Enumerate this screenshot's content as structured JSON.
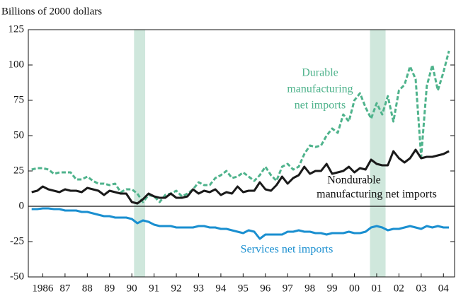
{
  "chart_data": {
    "type": "line",
    "y_axis_label": "Billions of 2000 dollars",
    "x": [
      1986,
      1986.25,
      1986.5,
      1986.75,
      1987,
      1987.25,
      1987.5,
      1987.75,
      1988,
      1988.25,
      1988.5,
      1988.75,
      1989,
      1989.25,
      1989.5,
      1989.75,
      1990,
      1990.25,
      1990.5,
      1990.75,
      1991,
      1991.25,
      1991.5,
      1991.75,
      1992,
      1992.25,
      1992.5,
      1992.75,
      1993,
      1993.25,
      1993.5,
      1993.75,
      1994,
      1994.25,
      1994.5,
      1994.75,
      1995,
      1995.25,
      1995.5,
      1995.75,
      1996,
      1996.25,
      1996.5,
      1996.75,
      1997,
      1997.25,
      1997.5,
      1997.75,
      1998,
      1998.25,
      1998.5,
      1998.75,
      1999,
      1999.25,
      1999.5,
      1999.75,
      2000,
      2000.25,
      2000.5,
      2000.75,
      2001,
      2001.25,
      2001.5,
      2001.75,
      2002,
      2002.25,
      2002.5,
      2002.75,
      2003,
      2003.25,
      2003.5,
      2003.75,
      2004,
      2004.25,
      2004.5,
      2004.75
    ],
    "series": [
      {
        "label": [
          "Durable",
          "manufacturing",
          "net imports"
        ],
        "color": "#4fb38c",
        "dashed": true,
        "values": [
          26,
          27,
          27,
          26,
          23,
          24,
          24,
          24,
          19,
          19,
          21,
          18,
          16,
          16,
          15,
          16,
          10,
          12,
          12,
          9,
          3,
          8,
          7,
          3,
          8,
          9,
          11,
          7,
          9,
          12,
          17,
          15,
          15,
          20,
          22,
          25,
          20,
          21,
          24,
          21,
          18,
          22,
          28,
          22,
          18,
          28,
          30,
          26,
          28,
          37,
          43,
          42,
          43,
          50,
          55,
          52,
          65,
          60,
          75,
          80,
          70,
          62,
          73,
          65,
          78,
          60,
          82,
          86,
          99,
          90,
          35,
          85,
          100,
          82,
          95,
          110
        ]
      },
      {
        "label": [
          "Nondurable",
          "manufacturing net imports"
        ],
        "color": "#1a1a1a",
        "dashed": false,
        "values": [
          10,
          11,
          14,
          12,
          11,
          10,
          12,
          11,
          11,
          10,
          13,
          12,
          11,
          8,
          11,
          10,
          9,
          9,
          3,
          2,
          5,
          9,
          7,
          6,
          6,
          9,
          6,
          6,
          7,
          12,
          9,
          11,
          10,
          12,
          8,
          10,
          9,
          14,
          10,
          11,
          11,
          17,
          12,
          11,
          15,
          21,
          16,
          20,
          22,
          28,
          23,
          25,
          25,
          30,
          23,
          24,
          25,
          28,
          24,
          27,
          26,
          33,
          30,
          29,
          29,
          39,
          34,
          31,
          34,
          40,
          34,
          35,
          35,
          36,
          37,
          39
        ]
      },
      {
        "label": [
          "Services net imports"
        ],
        "color": "#1a8fd0",
        "dashed": false,
        "values": [
          -2,
          -2,
          -1.5,
          -1.5,
          -2,
          -2,
          -3,
          -3,
          -3,
          -4,
          -4,
          -5,
          -6,
          -7,
          -7,
          -8,
          -8,
          -8,
          -9,
          -12,
          -10,
          -11,
          -13,
          -14,
          -14,
          -14,
          -15,
          -15,
          -15,
          -15,
          -14,
          -14,
          -15,
          -15,
          -16,
          -16,
          -17,
          -18,
          -19,
          -17,
          -18,
          -23,
          -20,
          -20,
          -20,
          -20,
          -18,
          -18,
          -17,
          -18,
          -18,
          -19,
          -19,
          -20,
          -19,
          -19,
          -19,
          -18,
          -19,
          -19,
          -18,
          -15,
          -14,
          -15,
          -17,
          -16,
          -16,
          -15,
          -14,
          -15,
          -16,
          -14,
          -15,
          -14,
          -15,
          -15
        ]
      }
    ],
    "shaded_regions": [
      [
        1990.6,
        1991.1
      ],
      [
        2001.2,
        2001.9
      ]
    ],
    "xlim": [
      1985.85,
      2005
    ],
    "ylim": [
      -50,
      125
    ],
    "yticks": [
      -50,
      -25,
      0,
      25,
      50,
      75,
      100,
      125
    ],
    "xticks": [
      {
        "value": 1986.5,
        "label": "1986"
      },
      {
        "value": 1987.5,
        "label": "87"
      },
      {
        "value": 1988.5,
        "label": "88"
      },
      {
        "value": 1989.5,
        "label": "89"
      },
      {
        "value": 1990.5,
        "label": "90"
      },
      {
        "value": 1991.5,
        "label": "91"
      },
      {
        "value": 1992.5,
        "label": "92"
      },
      {
        "value": 1993.5,
        "label": "93"
      },
      {
        "value": 1994.5,
        "label": "94"
      },
      {
        "value": 1995.5,
        "label": "95"
      },
      {
        "value": 1996.5,
        "label": "96"
      },
      {
        "value": 1997.5,
        "label": "97"
      },
      {
        "value": 1998.5,
        "label": "98"
      },
      {
        "value": 1999.5,
        "label": "99"
      },
      {
        "value": 2000.5,
        "label": "00"
      },
      {
        "value": 2001.5,
        "label": "01"
      },
      {
        "value": 2002.5,
        "label": "02"
      },
      {
        "value": 2003.5,
        "label": "03"
      },
      {
        "value": 2004.5,
        "label": "04"
      }
    ],
    "shading_color": "#cfe7dc"
  }
}
